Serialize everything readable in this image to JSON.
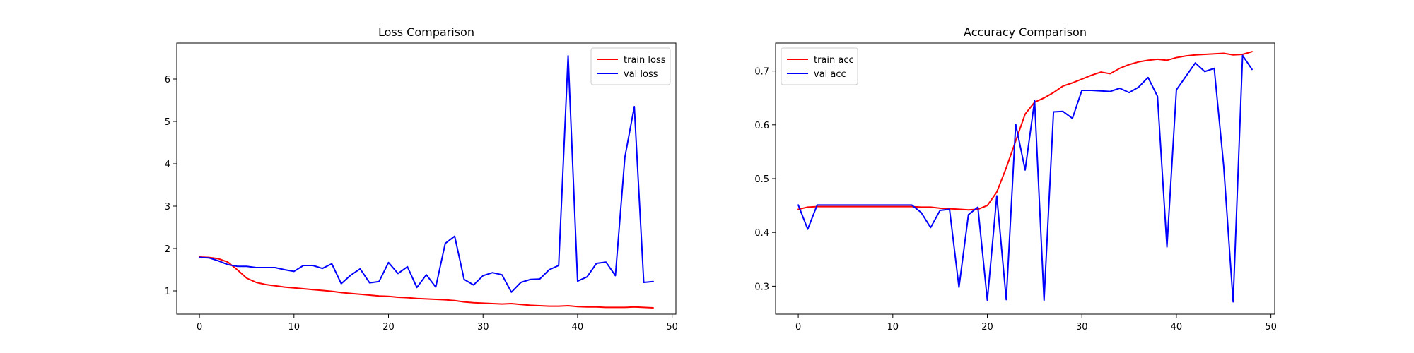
{
  "chart_data": [
    {
      "type": "line",
      "title": "Loss Comparison",
      "xlabel": "",
      "ylabel": "",
      "xlim": [
        -2.4,
        50.4
      ],
      "ylim": [
        0.45,
        6.85
      ],
      "xticks": [
        0,
        10,
        20,
        30,
        40,
        50
      ],
      "yticks": [
        1,
        2,
        3,
        4,
        5,
        6
      ],
      "grid": false,
      "legend_position": "top-right",
      "series": [
        {
          "name": "train loss",
          "color": "#ff0000",
          "x": [
            0,
            1,
            2,
            3,
            4,
            5,
            6,
            7,
            8,
            9,
            10,
            11,
            12,
            13,
            14,
            15,
            16,
            17,
            18,
            19,
            20,
            21,
            22,
            23,
            24,
            25,
            26,
            27,
            28,
            29,
            30,
            31,
            32,
            33,
            34,
            35,
            36,
            37,
            38,
            39,
            40,
            41,
            42,
            43,
            44,
            45,
            46,
            47,
            48
          ],
          "y": [
            1.8,
            1.79,
            1.76,
            1.68,
            1.5,
            1.3,
            1.2,
            1.15,
            1.12,
            1.09,
            1.07,
            1.05,
            1.03,
            1.01,
            0.99,
            0.96,
            0.94,
            0.92,
            0.9,
            0.88,
            0.87,
            0.85,
            0.84,
            0.82,
            0.81,
            0.8,
            0.79,
            0.77,
            0.74,
            0.72,
            0.71,
            0.7,
            0.69,
            0.7,
            0.68,
            0.66,
            0.65,
            0.64,
            0.64,
            0.65,
            0.63,
            0.62,
            0.62,
            0.61,
            0.61,
            0.61,
            0.62,
            0.61,
            0.6
          ]
        },
        {
          "name": "val loss",
          "color": "#0000ff",
          "x": [
            0,
            1,
            2,
            3,
            4,
            5,
            6,
            7,
            8,
            9,
            10,
            11,
            12,
            13,
            14,
            15,
            16,
            17,
            18,
            19,
            20,
            21,
            22,
            23,
            24,
            25,
            26,
            27,
            28,
            29,
            30,
            31,
            32,
            33,
            34,
            35,
            36,
            37,
            38,
            39,
            40,
            41,
            42,
            43,
            44,
            45,
            46,
            47,
            48
          ],
          "y": [
            1.79,
            1.78,
            1.71,
            1.62,
            1.58,
            1.58,
            1.55,
            1.55,
            1.55,
            1.5,
            1.46,
            1.6,
            1.6,
            1.53,
            1.64,
            1.17,
            1.37,
            1.52,
            1.19,
            1.22,
            1.67,
            1.41,
            1.57,
            1.08,
            1.38,
            1.09,
            2.12,
            2.29,
            1.27,
            1.14,
            1.36,
            1.43,
            1.38,
            0.97,
            1.2,
            1.27,
            1.28,
            1.5,
            1.6,
            6.55,
            1.23,
            1.33,
            1.65,
            1.68,
            1.36,
            4.15,
            5.35,
            1.2,
            1.22
          ]
        }
      ]
    },
    {
      "type": "line",
      "title": "Accuracy Comparison",
      "xlabel": "",
      "ylabel": "",
      "xlim": [
        -2.4,
        50.4
      ],
      "ylim": [
        0.248,
        0.752
      ],
      "xticks": [
        0,
        10,
        20,
        30,
        40,
        50
      ],
      "yticks": [
        0.3,
        0.4,
        0.5,
        0.6,
        0.7
      ],
      "grid": false,
      "legend_position": "top-left",
      "series": [
        {
          "name": "train acc",
          "color": "#ff0000",
          "x": [
            0,
            1,
            2,
            3,
            4,
            5,
            6,
            7,
            8,
            9,
            10,
            11,
            12,
            13,
            14,
            15,
            16,
            17,
            18,
            19,
            20,
            21,
            22,
            23,
            24,
            25,
            26,
            27,
            28,
            29,
            30,
            31,
            32,
            33,
            34,
            35,
            36,
            37,
            38,
            39,
            40,
            41,
            42,
            43,
            44,
            45,
            46,
            47,
            48
          ],
          "y": [
            0.443,
            0.447,
            0.448,
            0.448,
            0.448,
            0.448,
            0.448,
            0.448,
            0.448,
            0.448,
            0.448,
            0.448,
            0.448,
            0.447,
            0.447,
            0.445,
            0.444,
            0.443,
            0.442,
            0.443,
            0.45,
            0.475,
            0.52,
            0.57,
            0.62,
            0.642,
            0.65,
            0.66,
            0.672,
            0.678,
            0.685,
            0.692,
            0.698,
            0.695,
            0.705,
            0.712,
            0.717,
            0.72,
            0.722,
            0.72,
            0.725,
            0.728,
            0.73,
            0.731,
            0.732,
            0.733,
            0.73,
            0.731,
            0.736
          ]
        },
        {
          "name": "val acc",
          "color": "#0000ff",
          "x": [
            0,
            1,
            2,
            3,
            4,
            5,
            6,
            7,
            8,
            9,
            10,
            11,
            12,
            13,
            14,
            15,
            16,
            17,
            18,
            19,
            20,
            21,
            22,
            23,
            24,
            25,
            26,
            27,
            28,
            29,
            30,
            31,
            32,
            33,
            34,
            35,
            36,
            37,
            38,
            39,
            40,
            41,
            42,
            43,
            44,
            45,
            46,
            47,
            48
          ],
          "y": [
            0.451,
            0.406,
            0.451,
            0.451,
            0.451,
            0.451,
            0.451,
            0.451,
            0.451,
            0.451,
            0.451,
            0.451,
            0.451,
            0.437,
            0.409,
            0.441,
            0.443,
            0.298,
            0.433,
            0.447,
            0.274,
            0.468,
            0.275,
            0.601,
            0.516,
            0.645,
            0.274,
            0.624,
            0.625,
            0.612,
            0.664,
            0.664,
            0.663,
            0.662,
            0.668,
            0.66,
            0.67,
            0.688,
            0.653,
            0.373,
            0.665,
            0.69,
            0.715,
            0.699,
            0.705,
            0.524,
            0.271,
            0.729,
            0.703
          ]
        }
      ]
    }
  ]
}
